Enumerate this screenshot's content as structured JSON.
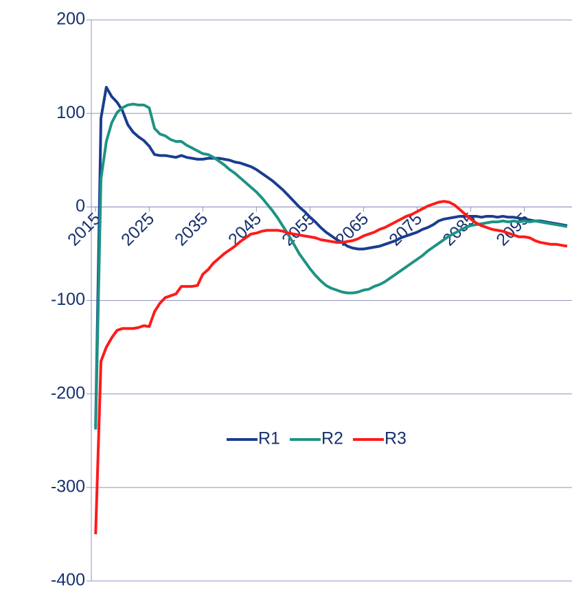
{
  "chart_data": {
    "type": "line",
    "x": [
      2015,
      2016,
      2017,
      2018,
      2019,
      2020,
      2021,
      2022,
      2023,
      2024,
      2025,
      2026,
      2027,
      2028,
      2029,
      2030,
      2031,
      2032,
      2033,
      2034,
      2035,
      2036,
      2037,
      2038,
      2039,
      2040,
      2041,
      2042,
      2043,
      2044,
      2045,
      2046,
      2047,
      2048,
      2049,
      2050,
      2051,
      2052,
      2053,
      2054,
      2055,
      2056,
      2057,
      2058,
      2059,
      2060,
      2061,
      2062,
      2063,
      2064,
      2065,
      2066,
      2067,
      2068,
      2069,
      2070,
      2071,
      2072,
      2073,
      2074,
      2075,
      2076,
      2077,
      2078,
      2079,
      2080,
      2081,
      2082,
      2083,
      2084,
      2085,
      2086,
      2087,
      2088,
      2089,
      2090,
      2091,
      2092,
      2093,
      2094,
      2095,
      2096,
      2097,
      2098,
      2099,
      2100,
      2101,
      2102,
      2103
    ],
    "series": [
      {
        "name": "R1",
        "color": "#1a3d8f",
        "values": [
          -235,
          95,
          128,
          118,
          112,
          103,
          88,
          80,
          75,
          71,
          65,
          56,
          55,
          55,
          54,
          53,
          55,
          53,
          52,
          51,
          51,
          52,
          52,
          52,
          51,
          50,
          48,
          47,
          45,
          43,
          40,
          36,
          32,
          28,
          23,
          18,
          12,
          6,
          0,
          -5,
          -11,
          -16,
          -22,
          -27,
          -31,
          -35,
          -38,
          -42,
          -44,
          -45,
          -45,
          -44,
          -43,
          -42,
          -40,
          -38,
          -36,
          -33,
          -31,
          -29,
          -27,
          -24,
          -22,
          -19,
          -15,
          -13,
          -12,
          -11,
          -10,
          -10,
          -10,
          -10,
          -11,
          -10,
          -10,
          -11,
          -10,
          -11,
          -11,
          -12,
          -13,
          -14,
          -15,
          -15,
          -16,
          -17,
          -18,
          -19,
          -20
        ]
      },
      {
        "name": "R2",
        "color": "#1d9383",
        "values": [
          -238,
          30,
          70,
          90,
          101,
          106,
          109,
          110,
          109,
          109,
          106,
          84,
          78,
          76,
          72,
          70,
          70,
          66,
          63,
          60,
          57,
          56,
          53,
          49,
          45,
          40,
          36,
          31,
          26,
          21,
          16,
          10,
          3,
          -4,
          -12,
          -21,
          -30,
          -40,
          -50,
          -58,
          -66,
          -73,
          -79,
          -84,
          -87,
          -89,
          -91,
          -92,
          -92,
          -91,
          -89,
          -88,
          -85,
          -83,
          -80,
          -76,
          -72,
          -68,
          -64,
          -60,
          -56,
          -52,
          -47,
          -43,
          -39,
          -35,
          -31,
          -28,
          -25,
          -22,
          -20,
          -19,
          -18,
          -17,
          -16,
          -16,
          -15,
          -16,
          -15,
          -16,
          -15,
          -16,
          -15,
          -16,
          -17,
          -18,
          -19,
          -20,
          -21
        ]
      },
      {
        "name": "R3",
        "color": "#ff1a1a",
        "values": [
          -350,
          -165,
          -150,
          -140,
          -132,
          -130,
          -130,
          -130,
          -129,
          -127,
          -128,
          -112,
          -103,
          -97,
          -95,
          -93,
          -85,
          -85,
          -85,
          -84,
          -72,
          -67,
          -60,
          -55,
          -50,
          -46,
          -42,
          -37,
          -33,
          -29,
          -28,
          -26,
          -25,
          -25,
          -25,
          -26,
          -28,
          -29,
          -30,
          -31,
          -32,
          -33,
          -35,
          -36,
          -37,
          -38,
          -38,
          -37,
          -36,
          -34,
          -31,
          -29,
          -27,
          -24,
          -22,
          -19,
          -16,
          -13,
          -10,
          -8,
          -5,
          -2,
          1,
          3,
          5,
          6,
          5,
          2,
          -3,
          -8,
          -13,
          -17,
          -20,
          -22,
          -24,
          -25,
          -26,
          -28,
          -30,
          -32,
          -32,
          -33,
          -36,
          -38,
          -39,
          -40,
          -40,
          -41,
          -42
        ]
      }
    ],
    "xlim": [
      2014.2,
      2103.9
    ],
    "xticks": [
      2015,
      2025,
      2035,
      2045,
      2055,
      2065,
      2075,
      2085,
      2095
    ],
    "ylim": [
      -400,
      200
    ],
    "yticks": [
      -400,
      -300,
      -200,
      -100,
      0,
      100,
      200
    ],
    "grid": true,
    "legend": "center"
  }
}
